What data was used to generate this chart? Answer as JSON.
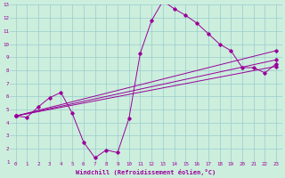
{
  "xlabel": "Windchill (Refroidissement éolien,°C)",
  "xlim": [
    -0.5,
    23.5
  ],
  "ylim": [
    1,
    13
  ],
  "bg_color": "#cceedd",
  "line_color": "#990099",
  "grid_color": "#99cccc",
  "series_zigzag_x": [
    0,
    1,
    2,
    3,
    4,
    5,
    6,
    7,
    8,
    9,
    10,
    11,
    12,
    13,
    14,
    15,
    16,
    17,
    18,
    19,
    20,
    21,
    22,
    23
  ],
  "series_zigzag_y": [
    4.5,
    4.4,
    5.2,
    5.9,
    6.3,
    4.7,
    2.5,
    1.3,
    1.9,
    1.7,
    4.3,
    9.3,
    11.8,
    13.3,
    12.7,
    12.2,
    11.6,
    10.8,
    10.0,
    9.5,
    8.2,
    8.2,
    7.8,
    8.5
  ],
  "line1_x": [
    0,
    23
  ],
  "line1_y": [
    4.5,
    9.5
  ],
  "line2_x": [
    0,
    23
  ],
  "line2_y": [
    4.5,
    8.8
  ],
  "line3_x": [
    0,
    23
  ],
  "line3_y": [
    4.5,
    8.3
  ],
  "xtick_vals": [
    0,
    1,
    2,
    3,
    4,
    5,
    6,
    7,
    8,
    9,
    10,
    11,
    12,
    13,
    14,
    15,
    16,
    17,
    18,
    19,
    20,
    21,
    22,
    23
  ],
  "xtick_labels": [
    "0",
    "1",
    "2",
    "3",
    "4",
    "5",
    "6",
    "7",
    "8",
    "9",
    "10",
    "11",
    "12",
    "13",
    "14",
    "15",
    "16",
    "17",
    "18",
    "19",
    "20",
    "21",
    "22",
    "23"
  ],
  "ytick_vals": [
    1,
    2,
    3,
    4,
    5,
    6,
    7,
    8,
    9,
    10,
    11,
    12,
    13
  ],
  "ytick_labels": [
    "1",
    "2",
    "3",
    "4",
    "5",
    "6",
    "7",
    "8",
    "9",
    "10",
    "11",
    "12",
    "13"
  ]
}
